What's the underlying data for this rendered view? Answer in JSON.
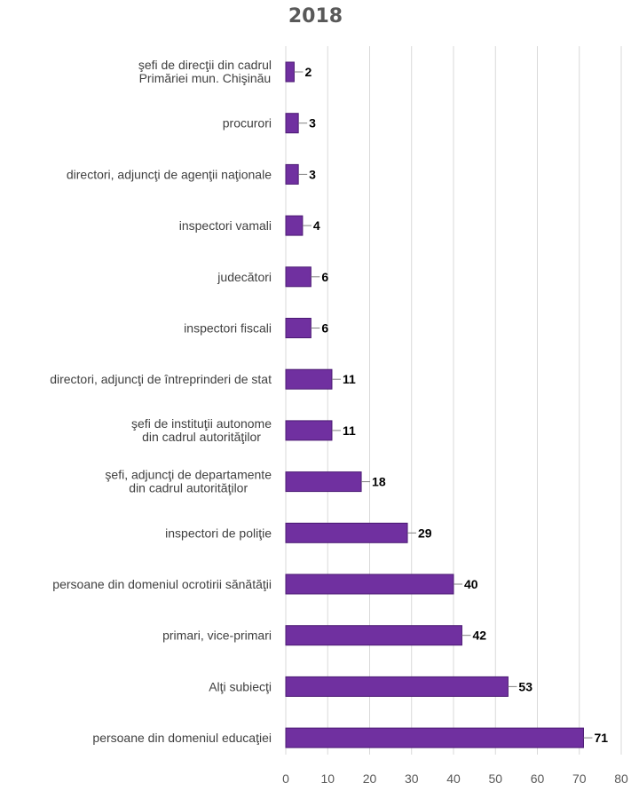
{
  "chart_data": {
    "type": "bar",
    "orientation": "horizontal",
    "title": "2018",
    "xlabel": "",
    "ylabel": "",
    "xlim": [
      0,
      80
    ],
    "x_ticks": [
      0,
      10,
      20,
      30,
      40,
      50,
      60,
      70,
      80
    ],
    "grid": "vertical",
    "legend": "none",
    "categories": [
      "şefi de direcţii din cadrul Primăriei mun. Chişinău",
      "procurori",
      "directori, adjuncţi de agenţii naţionale",
      "inspectori vamali",
      "judecători",
      "inspectori fiscali",
      "directori, adjuncţi de întreprinderi de stat",
      "şefi de instituţii autonome din cadrul autorităţilor",
      "şefi, adjuncţi de departamente din cadrul autorităţilor",
      "inspectori de poliţie",
      "persoane din domeniul ocrotirii sănătăţii",
      "primari, vice-primari",
      "Alţi subiecţi",
      "persoane din domeniul educaţiei"
    ],
    "values": [
      2,
      3,
      3,
      4,
      6,
      6,
      11,
      11,
      18,
      29,
      40,
      42,
      53,
      71
    ],
    "colors": {
      "bar_fill": "#7030a0",
      "bar_edge": "#4b1a73",
      "grid": "#d9d9d9",
      "label_text": "#404040",
      "tick_text": "#595959",
      "value_text": "#000000",
      "title_text": "#595959"
    }
  }
}
